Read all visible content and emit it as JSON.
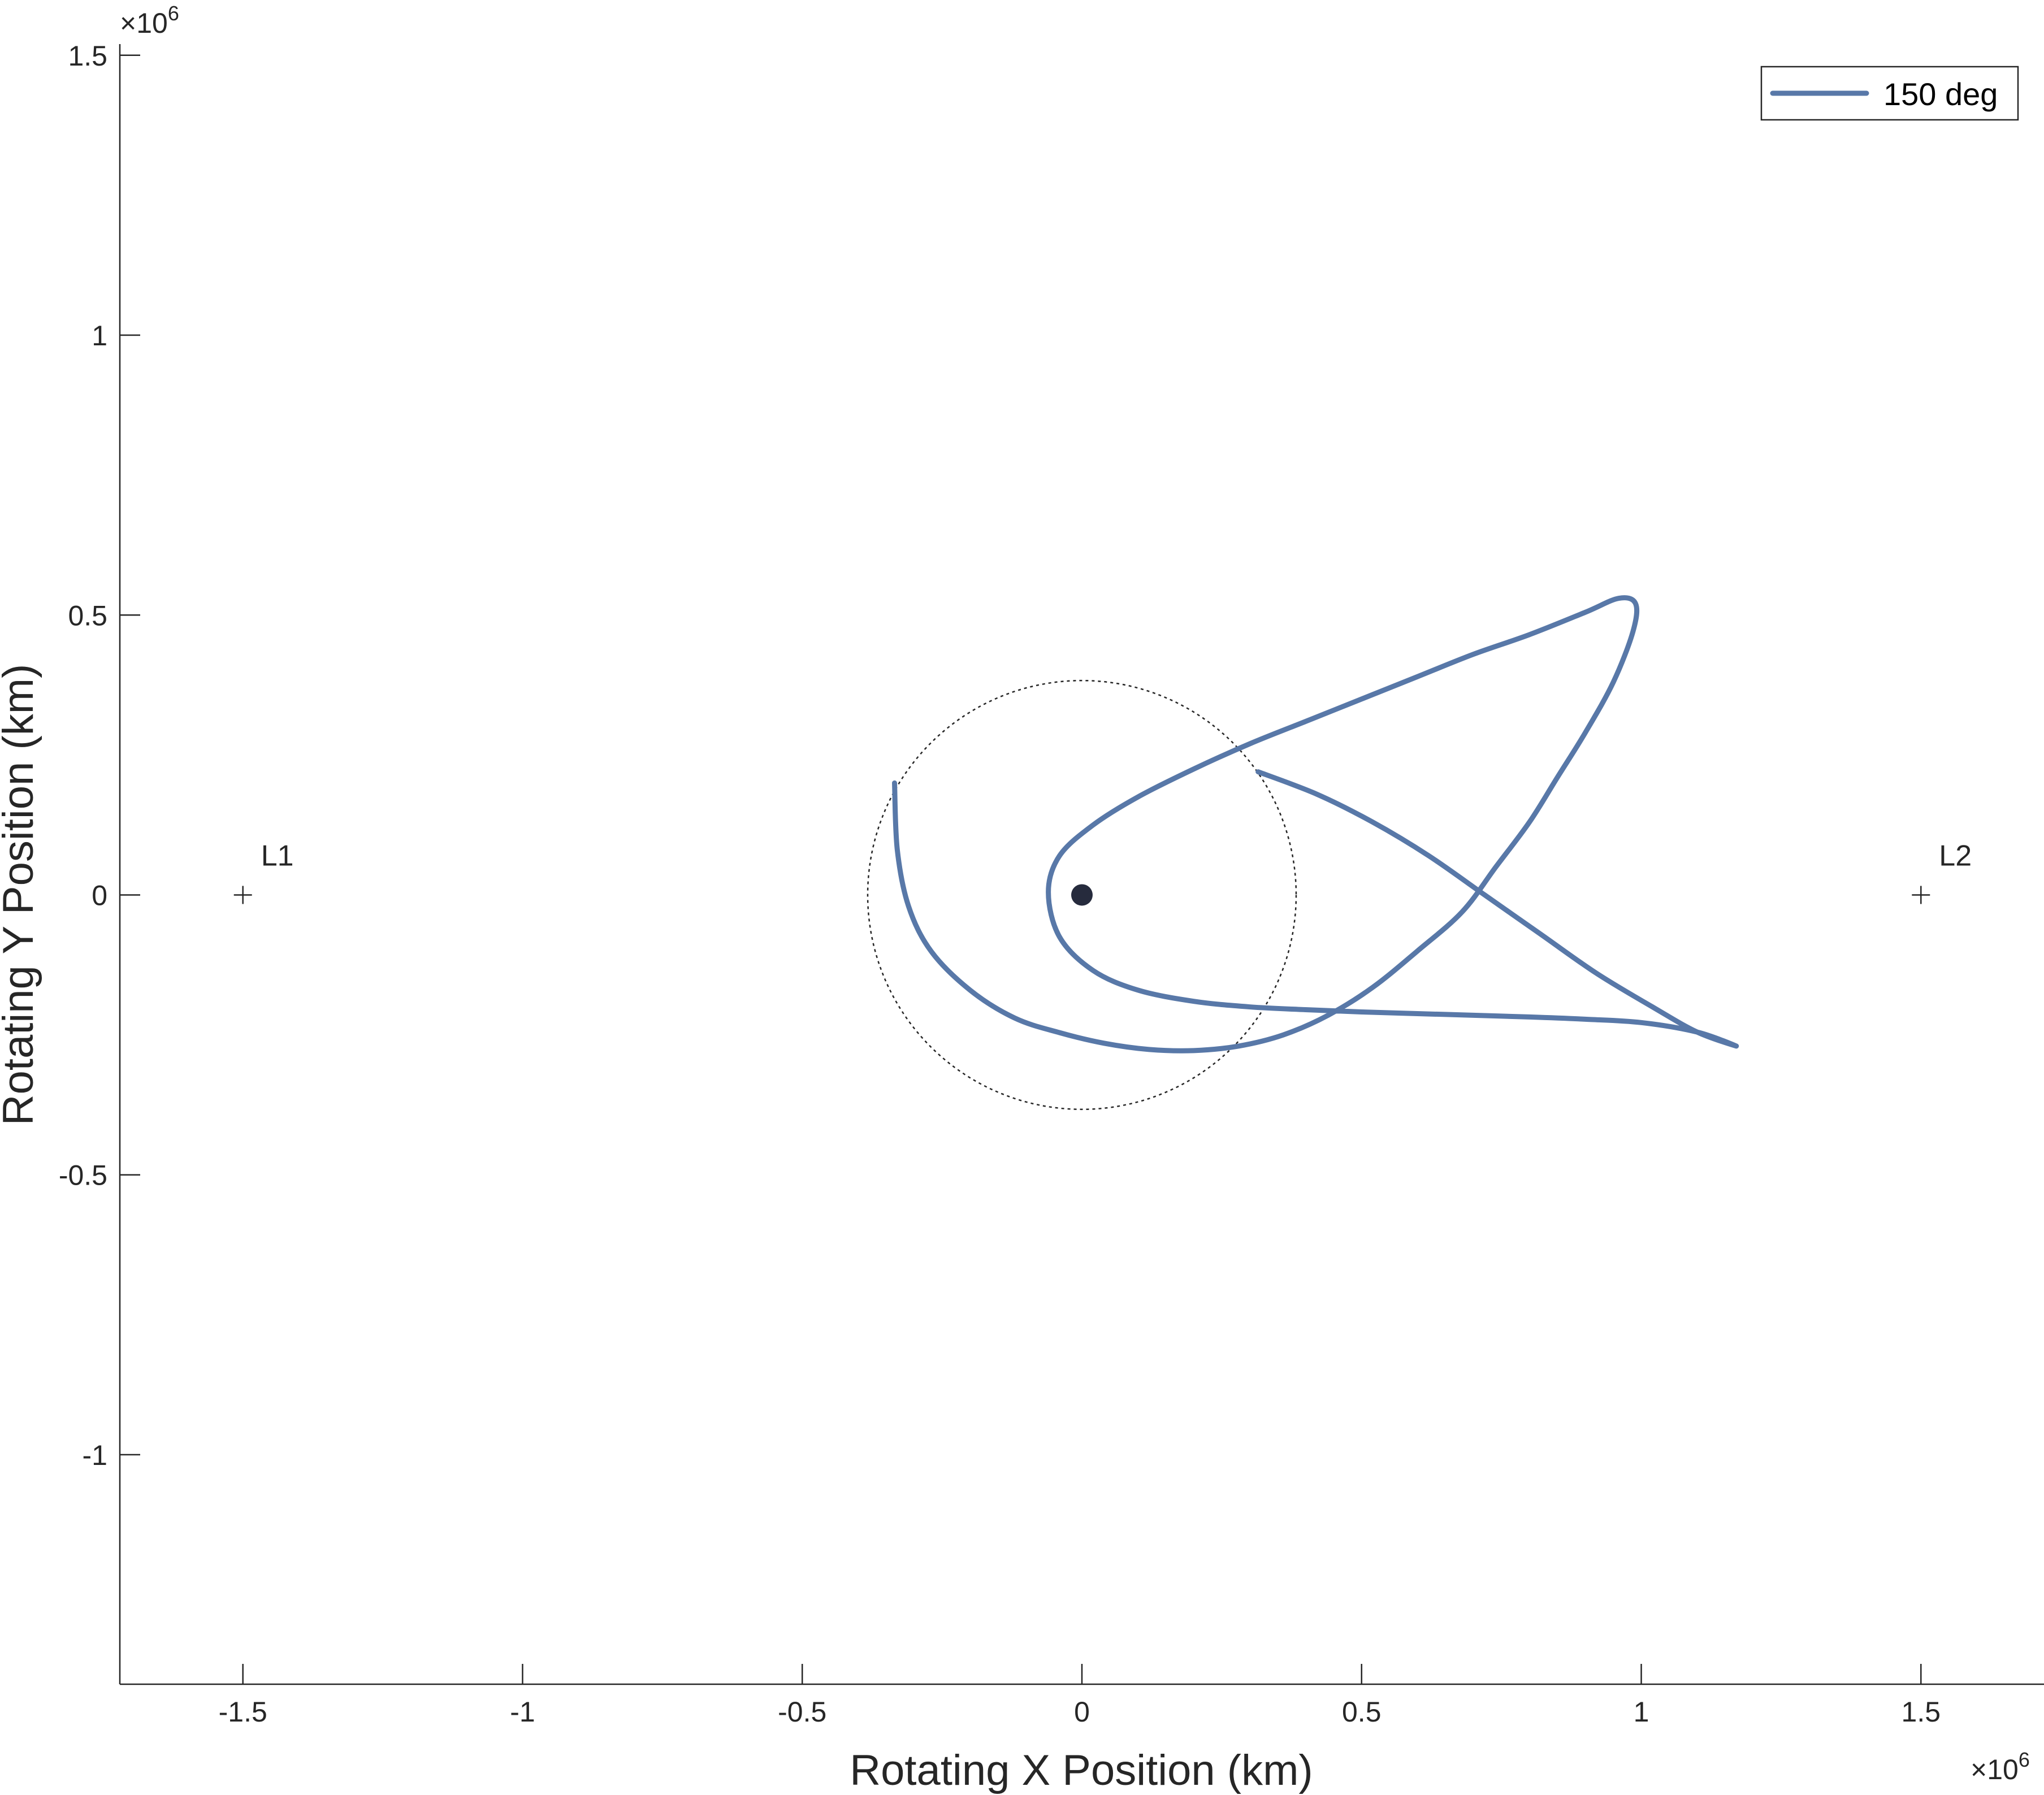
{
  "chart_data": {
    "type": "line",
    "title": "",
    "xlabel": "Rotating X Position (km)",
    "ylabel": "Rotating Y Position (km)",
    "x_exponent": "10",
    "x_exponent_power": "6",
    "y_exponent": "10",
    "y_exponent_power": "6",
    "exponent_prefix": "×",
    "xlim": [
      -1.72,
      1.72
    ],
    "ylim": [
      -1.41,
      1.52
    ],
    "xticks": [
      -1.5,
      -1,
      -0.5,
      0,
      0.5,
      1,
      1.5
    ],
    "xtick_labels": [
      "-1.5",
      "-1",
      "-0.5",
      "0",
      "0.5",
      "1",
      "1.5"
    ],
    "yticks": [
      -1,
      -0.5,
      0,
      0.5,
      1,
      1.5
    ],
    "ytick_labels": [
      "-1",
      "-0.5",
      "0",
      "0.5",
      "1",
      "1.5"
    ],
    "grid": false,
    "legend_position": "top-right",
    "series": [
      {
        "name": "150 deg",
        "color": "#5878A8",
        "x": [
          0.315,
          0.42,
          0.52,
          0.62,
          0.72,
          0.82,
          0.92,
          1.02,
          1.1,
          1.17,
          1.1,
          1.0,
          0.9,
          0.8,
          0.7,
          0.6,
          0.5,
          0.4,
          0.3,
          0.2,
          0.1,
          0.02,
          -0.04,
          -0.06,
          -0.04,
          0.02,
          0.1,
          0.2,
          0.3,
          0.4,
          0.5,
          0.6,
          0.7,
          0.8,
          0.9,
          0.96,
          0.99,
          0.985,
          0.95,
          0.9,
          0.85,
          0.8,
          0.74,
          0.68,
          0.6,
          0.52,
          0.44,
          0.36,
          0.28,
          0.2,
          0.12,
          0.04,
          -0.04,
          -0.12,
          -0.2,
          -0.27,
          -0.31,
          -0.33,
          -0.335
        ],
        "y": [
          0.22,
          0.18,
          0.13,
          0.07,
          0.0,
          -0.07,
          -0.14,
          -0.2,
          -0.245,
          -0.27,
          -0.245,
          -0.228,
          -0.222,
          -0.218,
          -0.215,
          -0.212,
          -0.209,
          -0.205,
          -0.2,
          -0.19,
          -0.17,
          -0.135,
          -0.075,
          0.005,
          0.07,
          0.125,
          0.175,
          0.225,
          0.27,
          0.31,
          0.35,
          0.39,
          0.43,
          0.465,
          0.505,
          0.53,
          0.52,
          0.47,
          0.38,
          0.29,
          0.21,
          0.13,
          0.05,
          -0.03,
          -0.1,
          -0.165,
          -0.215,
          -0.25,
          -0.27,
          -0.278,
          -0.276,
          -0.265,
          -0.246,
          -0.22,
          -0.17,
          -0.1,
          -0.02,
          0.08,
          0.2
        ]
      }
    ],
    "reference_circle": {
      "center": [
        0,
        0
      ],
      "radius": 0.383
    },
    "central_body": {
      "x": 0,
      "y": 0
    },
    "points": [
      {
        "label": "L1",
        "x": -1.5,
        "y": 0
      },
      {
        "label": "L2",
        "x": 1.5,
        "y": 0
      }
    ]
  }
}
